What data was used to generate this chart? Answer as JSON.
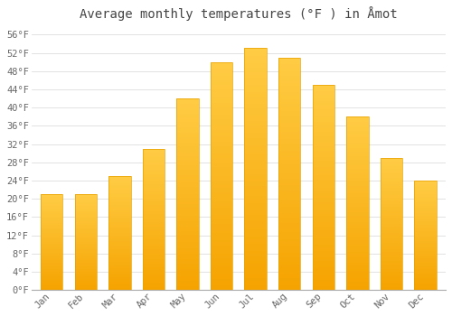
{
  "title": "Average monthly temperatures (°F ) in Åmot",
  "months": [
    "Jan",
    "Feb",
    "Mar",
    "Apr",
    "May",
    "Jun",
    "Jul",
    "Aug",
    "Sep",
    "Oct",
    "Nov",
    "Dec"
  ],
  "values": [
    21,
    21,
    25,
    31,
    42,
    50,
    53,
    51,
    45,
    38,
    29,
    24
  ],
  "bar_color_top": "#FFC733",
  "bar_color_bottom": "#F5A300",
  "background_color": "#FFFFFF",
  "grid_color": "#DDDDDD",
  "text_color": "#666666",
  "ylim": [
    0,
    58
  ],
  "yticks": [
    0,
    4,
    8,
    12,
    16,
    20,
    24,
    28,
    32,
    36,
    40,
    44,
    48,
    52,
    56
  ],
  "title_fontsize": 10,
  "tick_fontsize": 7.5,
  "font_family": "monospace"
}
